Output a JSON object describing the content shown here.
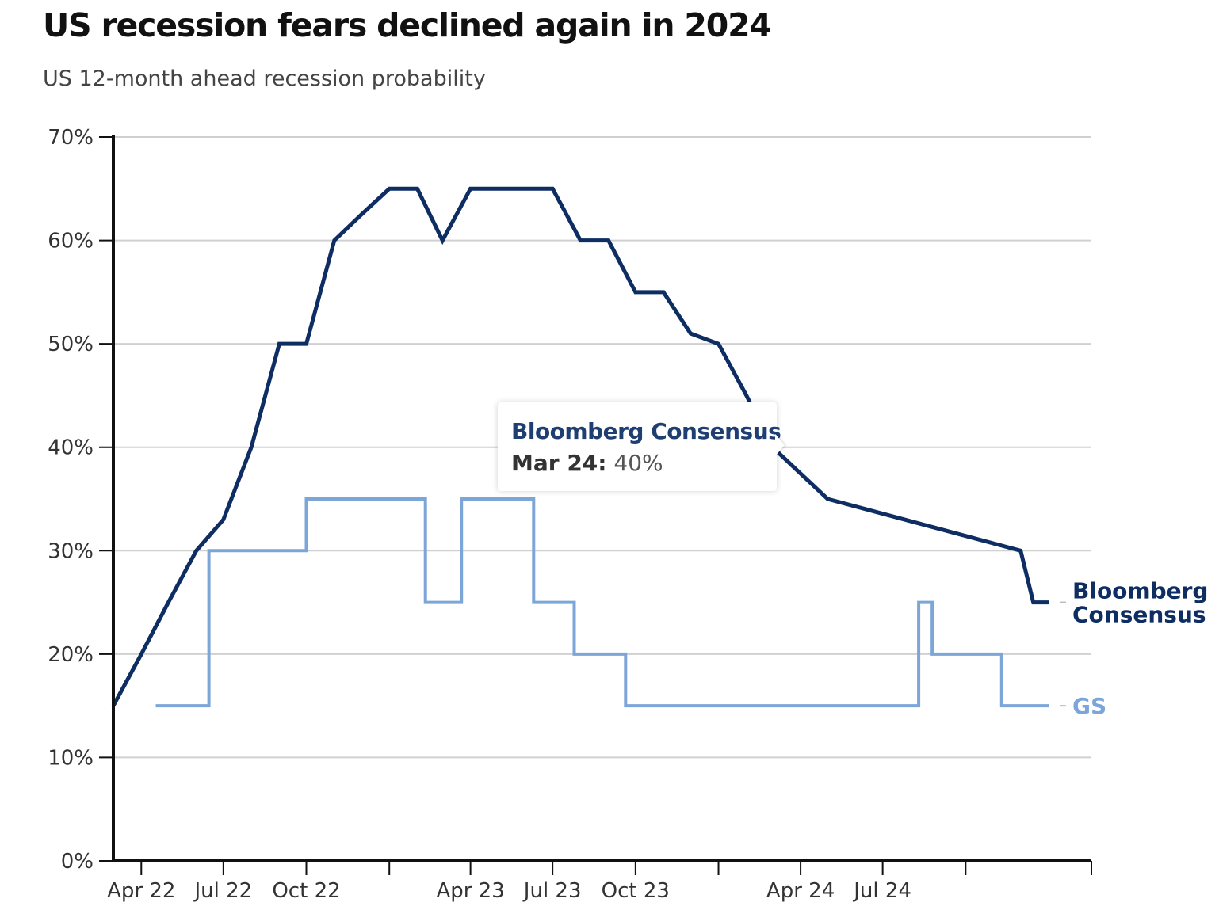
{
  "chart_data": {
    "type": "line",
    "title": "US recession fears declined again in 2024",
    "subtitle": "US 12-month ahead recession probability",
    "xlabel": "",
    "ylabel": "",
    "y_ticks": [
      "0%",
      "10%",
      "20%",
      "30%",
      "40%",
      "50%",
      "60%",
      "70%"
    ],
    "ylim": [
      0,
      70
    ],
    "x_tick_labels": [
      {
        "date": "2022-04-01",
        "label": "Apr 22"
      },
      {
        "date": "2022-07-01",
        "label": "Jul 22"
      },
      {
        "date": "2022-10-01",
        "label": "Oct 22"
      },
      {
        "date": "2023-01-01",
        "label": ""
      },
      {
        "date": "2023-04-01",
        "label": "Apr 23"
      },
      {
        "date": "2023-07-01",
        "label": "Jul 23"
      },
      {
        "date": "2023-10-01",
        "label": "Oct 23"
      },
      {
        "date": "2024-01-01",
        "label": ""
      },
      {
        "date": "2024-04-01",
        "label": "Apr 24"
      },
      {
        "date": "2024-07-01",
        "label": "Jul 24"
      },
      {
        "date": "2024-10-01",
        "label": ""
      }
    ],
    "xlim": [
      "2022-03-01",
      "2025-01-01"
    ],
    "grid": true,
    "legend": "end-of-line labels",
    "series": [
      {
        "name": "Bloomberg Consensus",
        "label_lines": [
          "Bloomberg",
          "Consensus"
        ],
        "color": "#0d2d63",
        "step": false,
        "points": [
          [
            "2022-03-01",
            15
          ],
          [
            "2022-04-01",
            20
          ],
          [
            "2022-05-01",
            25
          ],
          [
            "2022-06-01",
            30
          ],
          [
            "2022-07-01",
            33
          ],
          [
            "2022-08-01",
            40
          ],
          [
            "2022-09-01",
            50
          ],
          [
            "2022-10-01",
            50
          ],
          [
            "2022-11-01",
            60
          ],
          [
            "2022-12-01",
            62.5
          ],
          [
            "2023-01-01",
            65
          ],
          [
            "2023-02-01",
            65
          ],
          [
            "2023-03-01",
            60
          ],
          [
            "2023-04-01",
            65
          ],
          [
            "2023-05-01",
            65
          ],
          [
            "2023-06-01",
            65
          ],
          [
            "2023-07-01",
            65
          ],
          [
            "2023-08-01",
            60
          ],
          [
            "2023-09-01",
            60
          ],
          [
            "2023-10-01",
            55
          ],
          [
            "2023-11-01",
            55
          ],
          [
            "2023-12-01",
            51
          ],
          [
            "2024-01-01",
            50
          ],
          [
            "2024-02-01",
            45
          ],
          [
            "2024-03-01",
            40
          ],
          [
            "2024-05-01",
            35
          ],
          [
            "2024-12-01",
            30
          ],
          [
            "2024-12-15",
            25
          ],
          [
            "2025-01-01",
            25
          ]
        ]
      },
      {
        "name": "GS",
        "label_lines": [
          "GS"
        ],
        "color": "#7ca6d8",
        "step": true,
        "points": [
          [
            "2022-04-17",
            15
          ],
          [
            "2022-06-15",
            15
          ],
          [
            "2022-06-15",
            30
          ],
          [
            "2022-10-01",
            30
          ],
          [
            "2022-10-01",
            35
          ],
          [
            "2023-02-10",
            35
          ],
          [
            "2023-02-10",
            25
          ],
          [
            "2023-03-22",
            25
          ],
          [
            "2023-03-22",
            35
          ],
          [
            "2023-06-10",
            35
          ],
          [
            "2023-06-10",
            25
          ],
          [
            "2023-07-25",
            25
          ],
          [
            "2023-07-25",
            20
          ],
          [
            "2023-09-20",
            20
          ],
          [
            "2023-09-20",
            15
          ],
          [
            "2024-08-10",
            15
          ],
          [
            "2024-08-10",
            25
          ],
          [
            "2024-08-25",
            25
          ],
          [
            "2024-08-25",
            20
          ],
          [
            "2024-11-10",
            20
          ],
          [
            "2024-11-10",
            15
          ],
          [
            "2025-01-01",
            15
          ]
        ]
      }
    ],
    "annotation": {
      "series": "Bloomberg Consensus",
      "date_label": "Mar 24:",
      "value_label": "40%",
      "date": "2024-03-01",
      "value": 40
    }
  }
}
